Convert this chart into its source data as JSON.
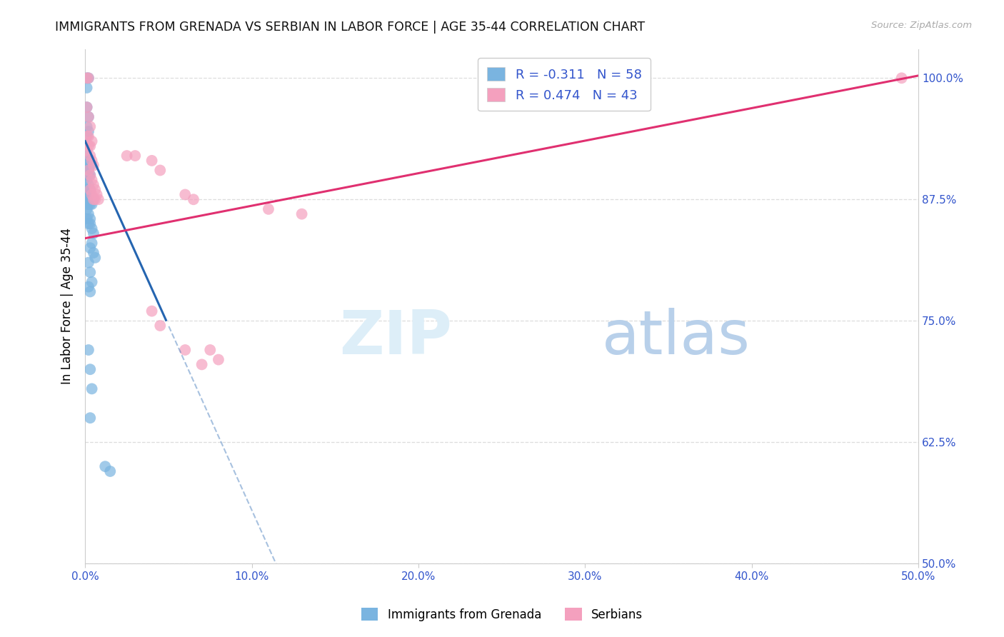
{
  "title": "IMMIGRANTS FROM GRENADA VS SERBIAN IN LABOR FORCE | AGE 35-44 CORRELATION CHART",
  "source": "Source: ZipAtlas.com",
  "ylabel": "In Labor Force | Age 35-44",
  "xlim": [
    0.0,
    0.5
  ],
  "ylim": [
    0.5,
    1.03
  ],
  "x_tick_vals": [
    0.0,
    0.1,
    0.2,
    0.3,
    0.4,
    0.5
  ],
  "y_tick_vals": [
    0.5,
    0.625,
    0.75,
    0.875,
    1.0
  ],
  "blue_scatter_color": "#7ab4e0",
  "pink_scatter_color": "#f4a0be",
  "blue_line_color": "#2565b0",
  "pink_line_color": "#e03070",
  "axis_tick_color": "#3355cc",
  "grid_color": "#dddddd",
  "legend_text_color": "#3355cc",
  "watermark_zip_color": "#ddeef8",
  "watermark_atlas_color": "#b8d0ea",
  "R_grenada": -0.311,
  "N_grenada": 58,
  "R_serbian": 0.474,
  "N_serbian": 43,
  "blue_intercept": 0.935,
  "blue_slope": -18.0,
  "pink_intercept": 0.83,
  "pink_slope": 0.34
}
